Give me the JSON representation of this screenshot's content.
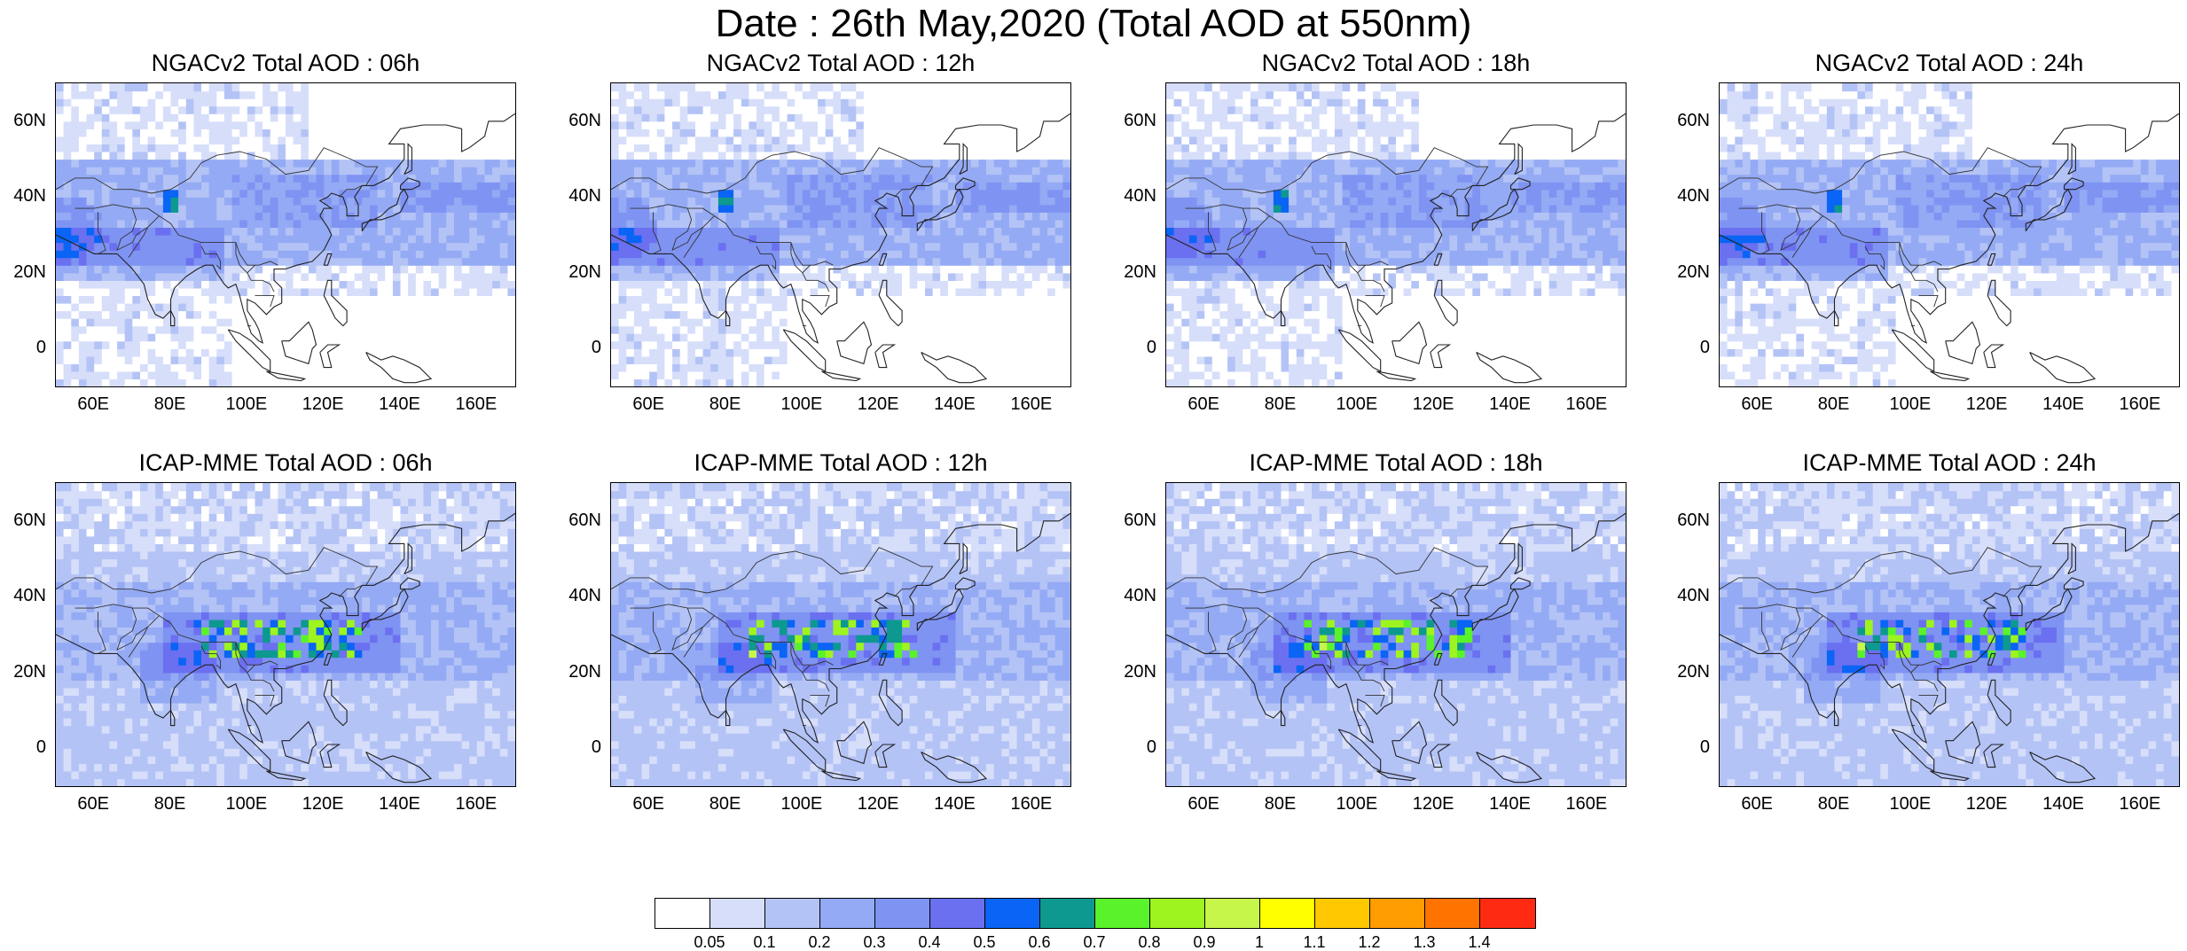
{
  "title": "Date : 26th May,2020 (Total AOD at 550nm)",
  "x_ticks": [
    "60E",
    "80E",
    "100E",
    "120E",
    "140E",
    "160E"
  ],
  "y_ticks": [
    "60N",
    "40N",
    "20N",
    "0"
  ],
  "lon_range": [
    50,
    170
  ],
  "lat_range": [
    -10,
    70
  ],
  "panels": [
    {
      "title": "NGACv2 Total AOD : 06h",
      "model": "NGACv2",
      "forecast_hour": "06h"
    },
    {
      "title": "NGACv2 Total AOD : 12h",
      "model": "NGACv2",
      "forecast_hour": "12h"
    },
    {
      "title": "NGACv2 Total AOD : 18h",
      "model": "NGACv2",
      "forecast_hour": "18h"
    },
    {
      "title": "NGACv2 Total AOD : 24h",
      "model": "NGACv2",
      "forecast_hour": "24h"
    },
    {
      "title": "ICAP-MME Total AOD : 06h",
      "model": "ICAP-MME",
      "forecast_hour": "06h"
    },
    {
      "title": "ICAP-MME Total AOD : 12h",
      "model": "ICAP-MME",
      "forecast_hour": "12h"
    },
    {
      "title": "ICAP-MME Total AOD : 18h",
      "model": "ICAP-MME",
      "forecast_hour": "18h"
    },
    {
      "title": "ICAP-MME Total AOD : 24h",
      "model": "ICAP-MME",
      "forecast_hour": "24h"
    }
  ],
  "colorbar": {
    "labels": [
      "0.05",
      "0.1",
      "0.2",
      "0.3",
      "0.4",
      "0.5",
      "0.6",
      "0.7",
      "0.8",
      "0.9",
      "1",
      "1.1",
      "1.2",
      "1.3",
      "1.4"
    ],
    "colors": [
      "#ffffff",
      "#d6defa",
      "#b4c3f6",
      "#94aaf4",
      "#7f93f2",
      "#6a70f0",
      "#0a64f5",
      "#0d9990",
      "#5af22a",
      "#9df41e",
      "#c7f64a",
      "#ffff00",
      "#ffc800",
      "#ff9c00",
      "#ff7300",
      "#ff2a12"
    ]
  }
}
